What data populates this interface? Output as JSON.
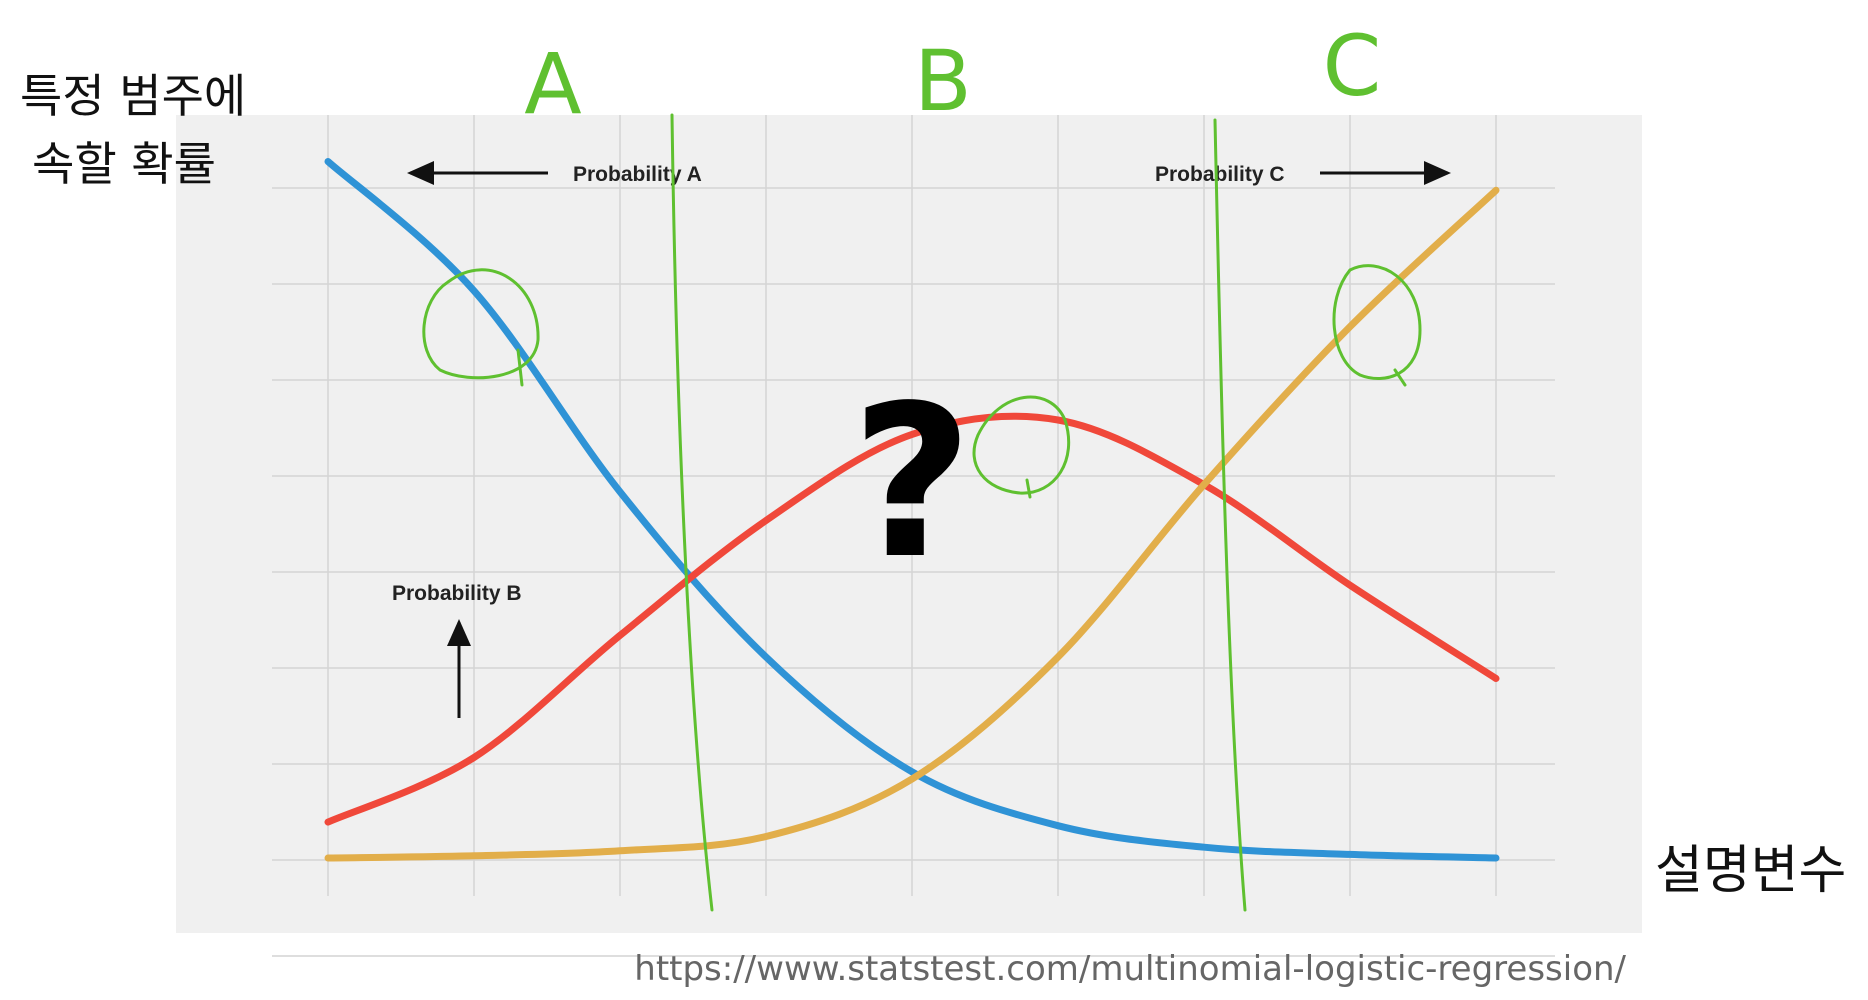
{
  "chart_data": {
    "type": "line",
    "x": [
      0,
      1,
      2,
      3,
      4,
      5,
      6,
      7,
      8
    ],
    "series": [
      {
        "name": "Probability A",
        "color": "#2f93d6",
        "values": [
          0.97,
          0.79,
          0.51,
          0.28,
          0.12,
          0.045,
          0.015,
          0.005,
          0.0
        ]
      },
      {
        "name": "Probability B",
        "color": "#f0483a",
        "values": [
          0.05,
          0.14,
          0.31,
          0.47,
          0.59,
          0.61,
          0.52,
          0.38,
          0.25
        ]
      },
      {
        "name": "Probability C",
        "color": "#e2ae4a",
        "values": [
          0.0,
          0.003,
          0.01,
          0.03,
          0.11,
          0.28,
          0.52,
          0.74,
          0.93
        ]
      }
    ],
    "grid": true,
    "annotations": {
      "prob_a": "Probability A",
      "prob_b": "Probability B",
      "prob_c": "Probability C",
      "question_mark": "?"
    },
    "handwritten": {
      "y_label_line1": "특정 범주에",
      "y_label_line2": "속할 확률",
      "x_label": "설명변수",
      "region_a": "A",
      "region_b": "B",
      "region_c": "C",
      "pen_color": "#5fc030"
    }
  },
  "source_url": "https://www.statstest.com/multinomial-logistic-regression/"
}
